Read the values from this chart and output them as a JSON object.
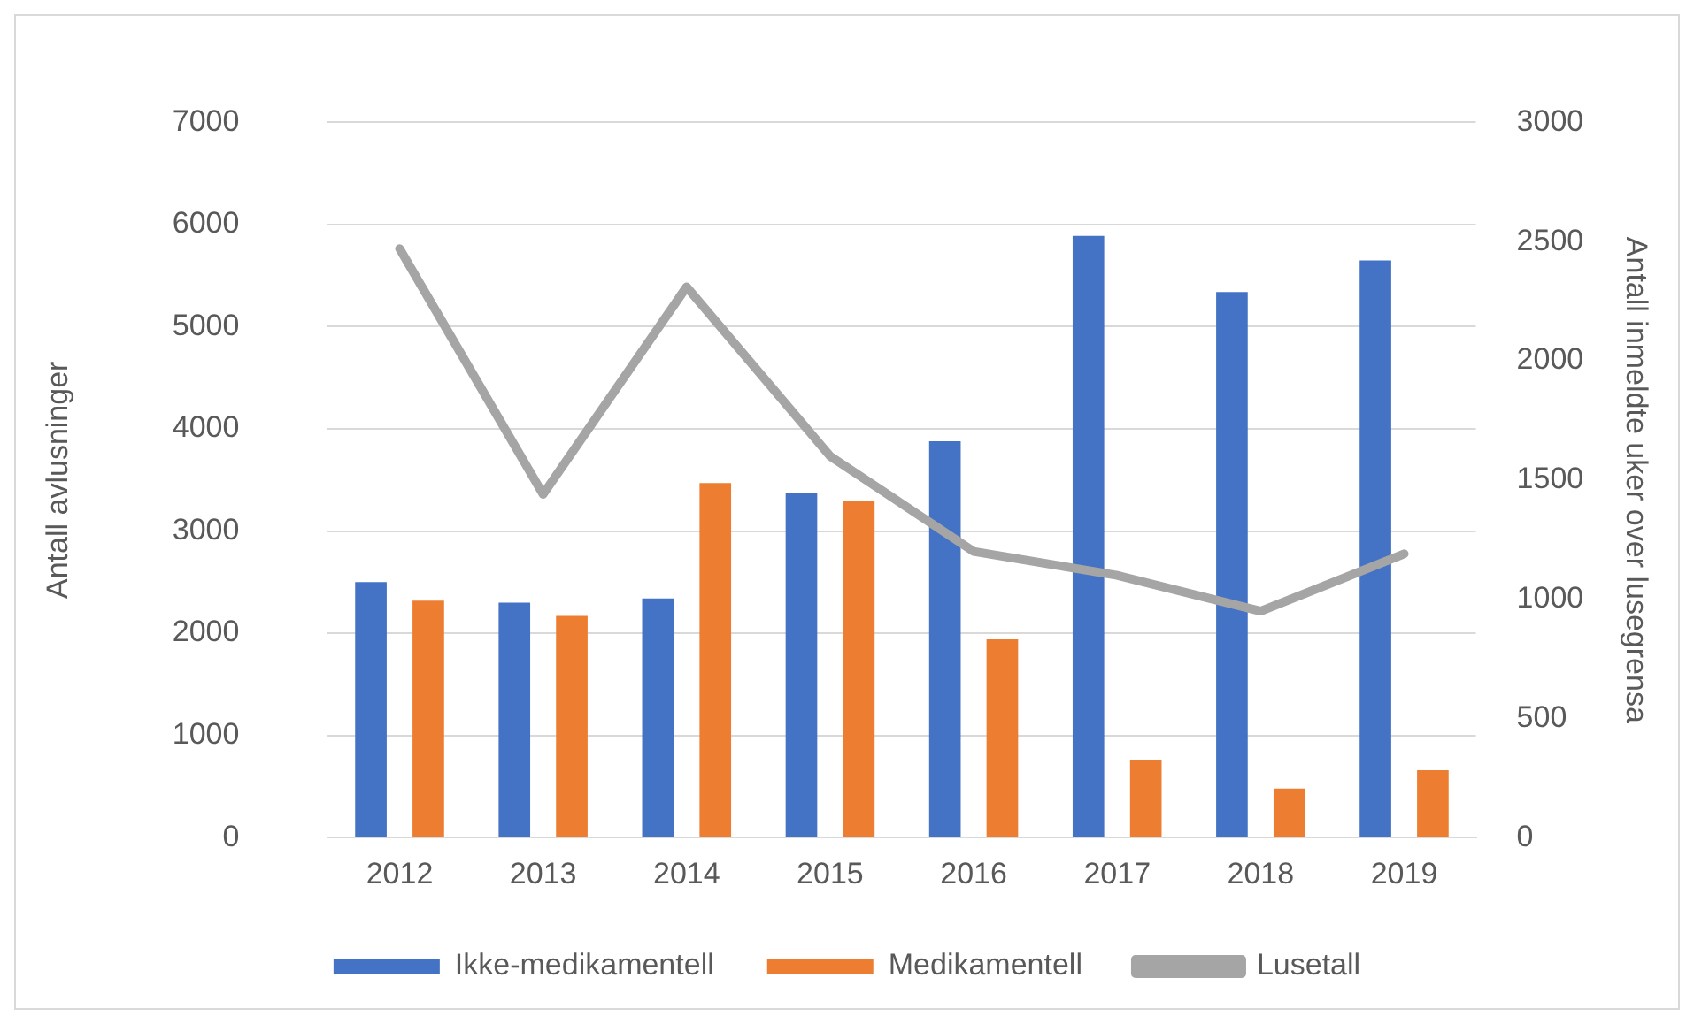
{
  "chart_data": {
    "type": "bar",
    "ylabel": "Antall avlusninger",
    "y2label": "Antall inmeldte uker over lusegrensa",
    "categories": [
      "2012",
      "2013",
      "2014",
      "2015",
      "2016",
      "2017",
      "2018",
      "2019"
    ],
    "series": [
      {
        "name": "Ikke-medikamentell",
        "color": "#4472c4",
        "values": [
          2500,
          2300,
          2340,
          3370,
          3880,
          5890,
          5340,
          5650
        ]
      },
      {
        "name": "Medikamentell",
        "color": "#ed7d31",
        "values": [
          2320,
          2170,
          3470,
          3300,
          1940,
          760,
          480,
          660
        ]
      },
      {
        "name": "Lusetall",
        "type": "line",
        "axis": "y2",
        "color": "#a5a5a5",
        "values": [
          2470,
          1440,
          2310,
          1600,
          1200,
          1100,
          950,
          1190
        ]
      }
    ],
    "ylim": [
      0,
      7000
    ],
    "yticks": [
      0,
      1000,
      2000,
      3000,
      4000,
      5000,
      6000,
      7000
    ],
    "y2lim": [
      0,
      3000
    ],
    "y2ticks": [
      0,
      500,
      1000,
      1500,
      2000,
      2500,
      3000
    ],
    "grid": "y",
    "legend": "bottom",
    "marker": "none"
  }
}
